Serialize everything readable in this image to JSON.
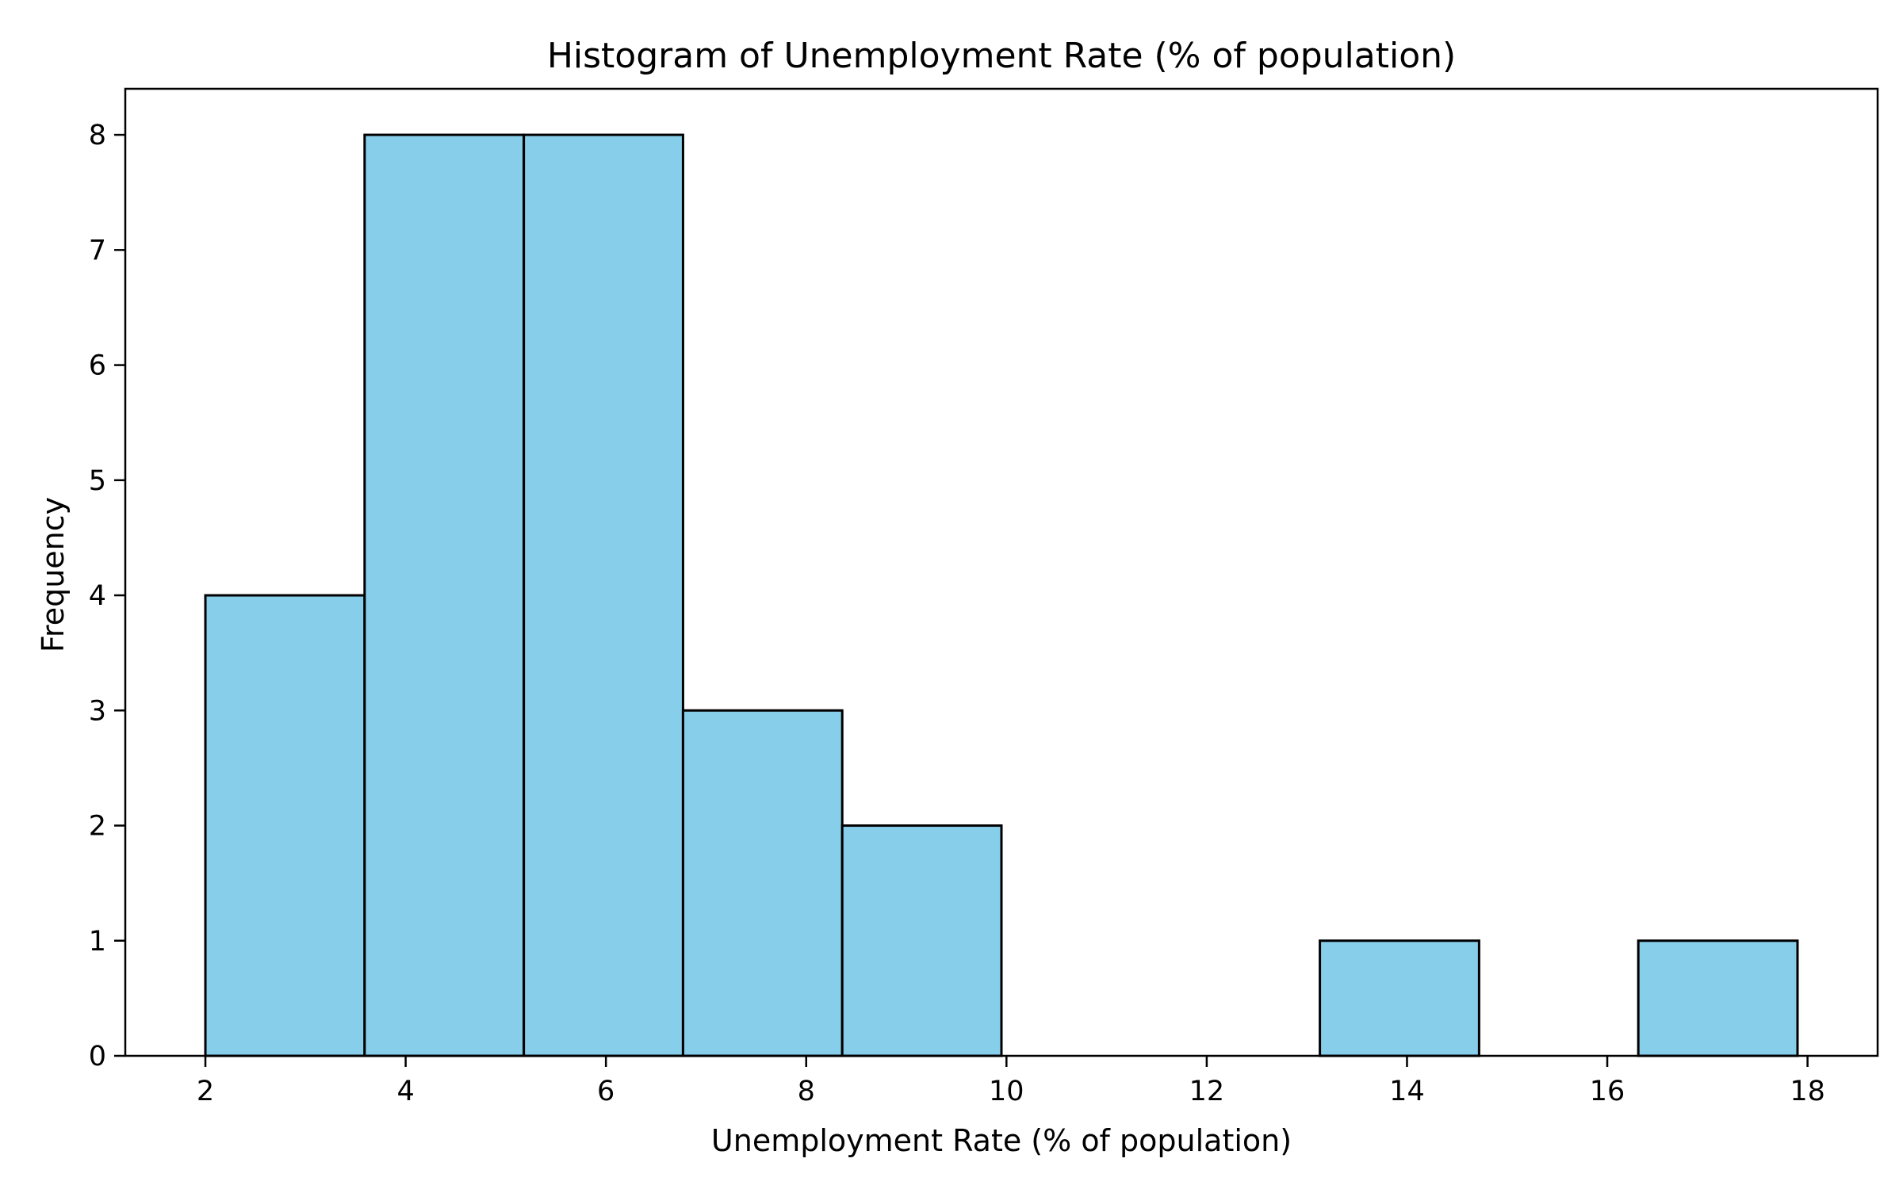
{
  "chart_data": {
    "type": "bar",
    "title": "Histogram of Unemployment Rate (% of population)",
    "xlabel": "Unemployment Rate (% of population)",
    "ylabel": "Frequency",
    "bins": [
      {
        "start": 2.0,
        "end": 3.59,
        "count": 4
      },
      {
        "start": 3.59,
        "end": 5.18,
        "count": 8
      },
      {
        "start": 5.18,
        "end": 6.77,
        "count": 8
      },
      {
        "start": 6.77,
        "end": 8.36,
        "count": 3
      },
      {
        "start": 8.36,
        "end": 9.95,
        "count": 2
      },
      {
        "start": 9.95,
        "end": 11.54,
        "count": 0
      },
      {
        "start": 11.54,
        "end": 13.13,
        "count": 0
      },
      {
        "start": 13.13,
        "end": 14.72,
        "count": 1
      },
      {
        "start": 14.72,
        "end": 16.31,
        "count": 0
      },
      {
        "start": 16.31,
        "end": 17.9,
        "count": 1
      }
    ],
    "xlim": [
      1.2,
      18.7
    ],
    "ylim": [
      0,
      8.4
    ],
    "xticks": [
      "2",
      "4",
      "6",
      "8",
      "10",
      "12",
      "14",
      "16",
      "18"
    ],
    "yticks": [
      "0",
      "1",
      "2",
      "3",
      "4",
      "5",
      "6",
      "7",
      "8"
    ],
    "grid": false,
    "bar_color": "#87CEEB",
    "edge_color": "#000000"
  }
}
